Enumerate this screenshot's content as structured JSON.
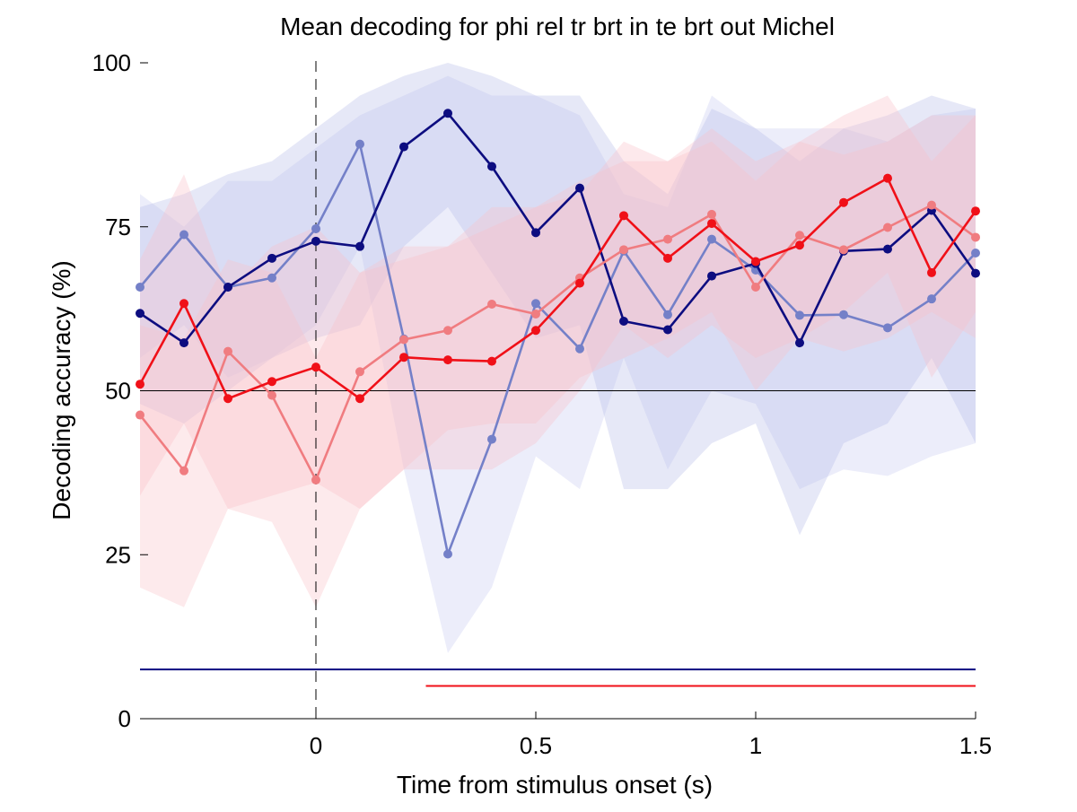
{
  "chart_data": {
    "type": "line",
    "title": "Mean decoding for phi rel tr brt in te brt out  Michel",
    "xlabel": "Time from stimulus onset (s)",
    "ylabel": "Decoding accuracy (%)",
    "xlim": [
      -0.4,
      1.5
    ],
    "ylim": [
      0,
      100
    ],
    "xticks": [
      0,
      0.5,
      1,
      1.5
    ],
    "xtick_labels": [
      "0",
      "0.5",
      "1",
      "1.5"
    ],
    "yticks": [
      0,
      25,
      50,
      75,
      100
    ],
    "ytick_labels": [
      "0",
      "25",
      "50",
      "75",
      "100"
    ],
    "grid": false,
    "chance_level": 50,
    "stimulus_onset": 0,
    "x": [
      -0.4,
      -0.3,
      -0.2,
      -0.1,
      0,
      0.1,
      0.2,
      0.3,
      0.4,
      0.5,
      0.6,
      0.7,
      0.8,
      0.9,
      1.0,
      1.1,
      1.2,
      1.3,
      1.4,
      1.5
    ],
    "series": [
      {
        "color": "#7480c8",
        "band_color": "#c8ccf0",
        "values": [
          65.8,
          73.8,
          65.8,
          67.2,
          74.7,
          87.6,
          57.9,
          25.1,
          42.6,
          63.3,
          56.4,
          71.3,
          61.6,
          73.1,
          68.4,
          61.5,
          61.6,
          59.6,
          64.0,
          71.0
        ],
        "upper": [
          80,
          75,
          82,
          82,
          87,
          92,
          95,
          98,
          95,
          95,
          92,
          80,
          78,
          95,
          90,
          90,
          90,
          88,
          92,
          93
        ],
        "lower": [
          55,
          60,
          52,
          55,
          60,
          72,
          38,
          10,
          20,
          40,
          35,
          55,
          38,
          50,
          48,
          35,
          38,
          37,
          40,
          42
        ]
      },
      {
        "color": "#0d0d80",
        "band_color": "#b8bce8",
        "values": [
          61.8,
          57.3,
          65.8,
          70.2,
          72.8,
          72.0,
          87.2,
          92.3,
          84.2,
          74.1,
          80.9,
          60.6,
          59.3,
          67.5,
          69.4,
          57.3,
          71.3,
          71.6,
          77.5,
          67.9
        ],
        "upper": [
          78,
          80,
          83,
          85,
          90,
          95,
          98,
          100,
          98,
          95,
          95,
          85,
          80,
          93,
          90,
          85,
          90,
          92,
          95,
          93
        ],
        "lower": [
          48,
          45,
          50,
          55,
          58,
          60,
          72,
          78,
          68,
          58,
          60,
          35,
          35,
          42,
          45,
          28,
          42,
          45,
          55,
          42
        ]
      },
      {
        "color": "#f07c80",
        "band_color": "#f8c4c8",
        "values": [
          46.3,
          37.8,
          56.0,
          49.3,
          36.4,
          52.9,
          57.8,
          59.2,
          63.2,
          61.7,
          67.2,
          71.5,
          73.1,
          76.9,
          65.8,
          73.7,
          71.5,
          74.9,
          78.3,
          73.4
        ],
        "upper": [
          60,
          58,
          70,
          68,
          55,
          68,
          72,
          72,
          78,
          78,
          82,
          85,
          85,
          88,
          82,
          88,
          86,
          88,
          92,
          92
        ],
        "lower": [
          20,
          17,
          32,
          30,
          17,
          32,
          38,
          44,
          45,
          45,
          52,
          55,
          58,
          62,
          50,
          58,
          56,
          58,
          62,
          58
        ]
      },
      {
        "color": "#f01018",
        "band_color": "#f8c0c8",
        "values": [
          51.0,
          63.3,
          48.8,
          51.4,
          53.6,
          48.8,
          55.1,
          54.7,
          54.5,
          59.2,
          66.4,
          76.7,
          70.2,
          75.5,
          69.7,
          72.2,
          78.7,
          82.4,
          68.0,
          77.4
        ],
        "upper": [
          70,
          83,
          65,
          72,
          75,
          68,
          70,
          72,
          75,
          78,
          80,
          88,
          85,
          90,
          85,
          88,
          92,
          95,
          85,
          92
        ],
        "lower": [
          34,
          45,
          32,
          34,
          36,
          32,
          38,
          38,
          38,
          42,
          50,
          60,
          55,
          60,
          55,
          58,
          62,
          68,
          52,
          62
        ]
      }
    ],
    "significance_lines": [
      {
        "color": "#0d0d80",
        "x_start": -0.4,
        "x_end": 1.5,
        "y": 7.5
      },
      {
        "color": "#f01018",
        "x_start": 0.25,
        "x_end": 1.5,
        "y": 5.0
      }
    ]
  }
}
